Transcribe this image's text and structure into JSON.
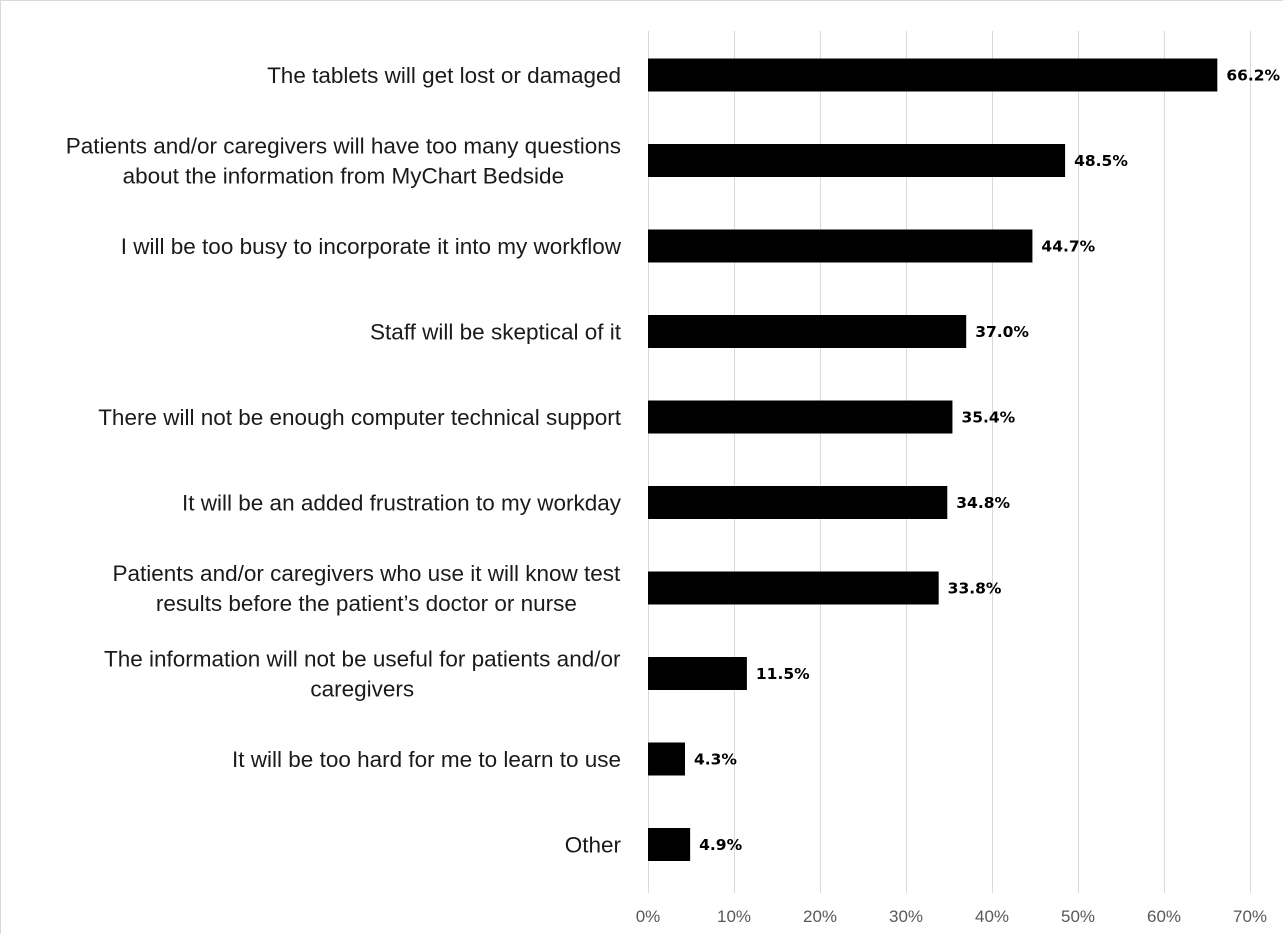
{
  "chart_data": {
    "type": "bar",
    "orientation": "horizontal",
    "categories": [
      [
        "The tablets will get lost or damaged"
      ],
      [
        "Patients and/or caregivers will have too many questions",
        "about the information from MyChart Bedside"
      ],
      [
        "I will be too busy to incorporate it into my workflow"
      ],
      [
        "Staff will be skeptical of it"
      ],
      [
        "There will not be enough computer technical support"
      ],
      [
        "It will be an added frustration to my workday"
      ],
      [
        "Patients and/or caregivers who use it will know test",
        "results before the patient’s doctor or nurse"
      ],
      [
        "The information will not be useful for patients and/or",
        "caregivers"
      ],
      [
        "It will be too hard for me to learn to use"
      ],
      [
        "Other"
      ]
    ],
    "values": [
      66.2,
      48.5,
      44.7,
      37.0,
      35.4,
      34.8,
      33.8,
      11.5,
      4.3,
      4.9
    ],
    "value_labels": [
      "66.2%",
      "48.5%",
      "44.7%",
      "37.0%",
      "35.4%",
      "34.8%",
      "33.8%",
      "11.5%",
      "4.3%",
      "4.9%"
    ],
    "xlim": [
      0,
      70
    ],
    "xticks": [
      0,
      10,
      20,
      30,
      40,
      50,
      60,
      70
    ],
    "xtick_labels": [
      "0%",
      "10%",
      "20%",
      "30%",
      "40%",
      "50%",
      "60%",
      "70%"
    ],
    "grid": "vertical",
    "legend": "none",
    "colors": {
      "bar": "#000000",
      "grid": "#d9d9d9",
      "tick_text": "#595959",
      "category_text": "#1a1a1a"
    }
  }
}
